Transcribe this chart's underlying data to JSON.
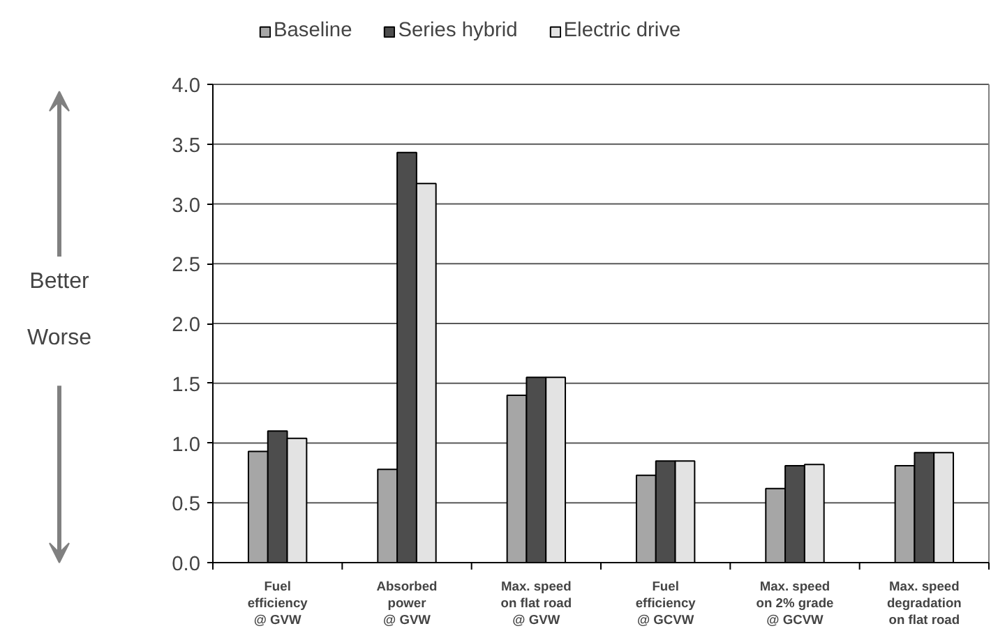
{
  "chart_data": {
    "type": "bar",
    "categories": [
      "Fuel\nefficiency\n@ GVW",
      "Absorbed\npower\n@ GVW",
      "Max. speed\non flat road\n@ GVW",
      "Fuel\nefficiency\n@ GCVW",
      "Max. speed\non 2% grade\n@ GCVW",
      "Max. speed\ndegradation\non flat road"
    ],
    "series": [
      {
        "name": "Baseline",
        "color": "#a6a6a6",
        "values": [
          0.93,
          0.78,
          1.4,
          0.73,
          0.62,
          0.81
        ]
      },
      {
        "name": "Series hybrid",
        "color": "#4d4d4d",
        "values": [
          1.1,
          3.43,
          1.55,
          0.85,
          0.81,
          0.92
        ]
      },
      {
        "name": "Electric drive",
        "color": "#e3e3e3",
        "values": [
          1.04,
          3.17,
          1.55,
          0.85,
          0.82,
          0.92
        ]
      }
    ],
    "ylim": [
      0,
      4
    ],
    "yticks": [
      {
        "value": 0,
        "label": "0.0"
      },
      {
        "value": 0.5,
        "label": "0.5"
      },
      {
        "value": 1,
        "label": "1.0"
      },
      {
        "value": 1.5,
        "label": "1.5"
      },
      {
        "value": 2,
        "label": "2.0"
      },
      {
        "value": 2.5,
        "label": "2.5"
      },
      {
        "value": 3,
        "label": "3.0"
      },
      {
        "value": 3.5,
        "label": "3.5"
      },
      {
        "value": 4,
        "label": "4.0"
      }
    ],
    "grid": "y",
    "legend": "top",
    "annotations": [
      "Better",
      "Worse"
    ]
  }
}
